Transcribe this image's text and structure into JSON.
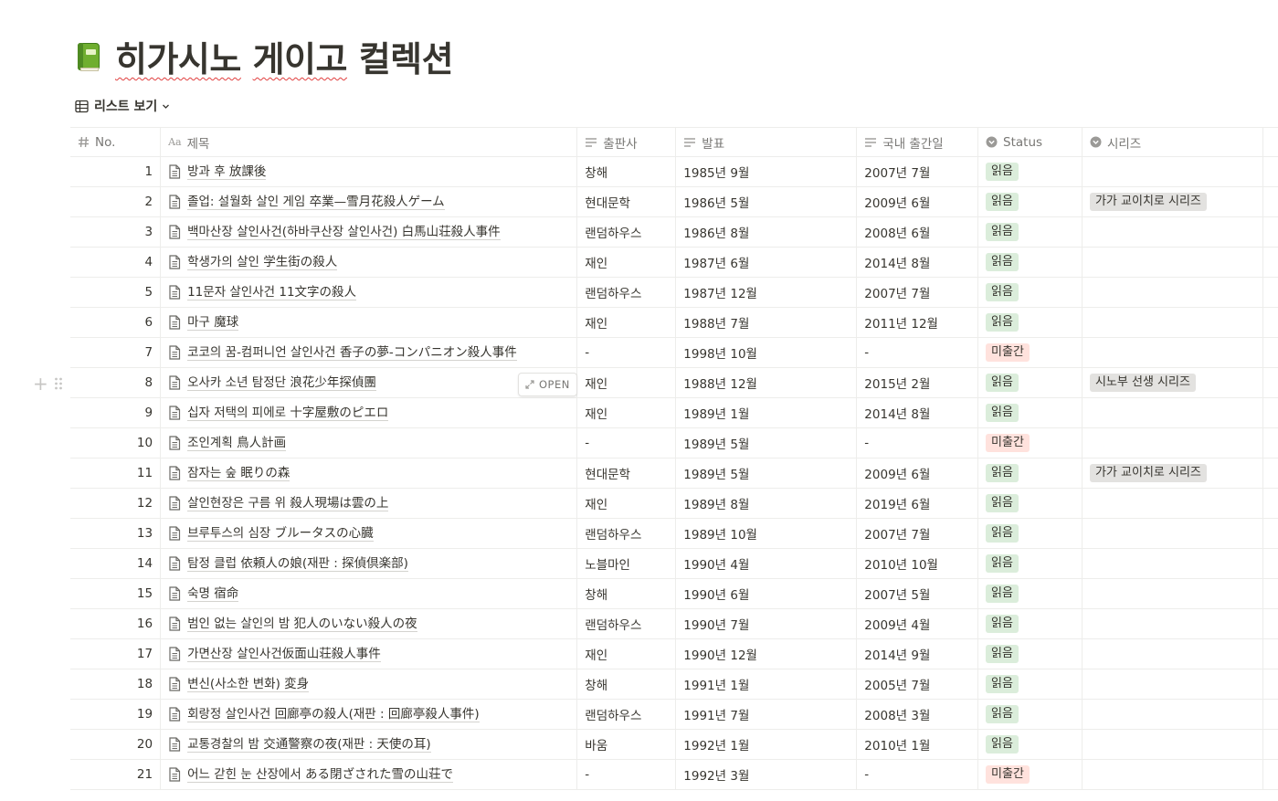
{
  "page": {
    "title_part1": "히가시노",
    "title_part2": "게이고",
    "title_part3": "컬렉션",
    "icon": "green-book-icon"
  },
  "view": {
    "label": "리스트 보기"
  },
  "columns": {
    "no": "No.",
    "title": "제목",
    "publisher": "출판사",
    "released": "발표",
    "kr_release": "국내 출간일",
    "status": "Status",
    "series": "시리즈"
  },
  "open_label": "OPEN",
  "rows": [
    {
      "no": "1",
      "title": "방과 후 放課後",
      "publisher": "창해",
      "released": "1985년 9월",
      "kr": "2007년 7월",
      "status": "읽음",
      "series": ""
    },
    {
      "no": "2",
      "title": "졸업: 설월화 살인 게임 卒業—雪月花殺人ゲーム",
      "publisher": "현대문학",
      "released": "1986년 5월",
      "kr": "2009년 6월",
      "status": "읽음",
      "series": "가가 교이치로 시리즈"
    },
    {
      "no": "3",
      "title": "백마산장 살인사건(하바쿠산장 살인사건) 白馬山荘殺人事件",
      "publisher": "랜덤하우스",
      "released": "1986년 8월",
      "kr": "2008년 6월",
      "status": "읽음",
      "series": ""
    },
    {
      "no": "4",
      "title": "학생가의 살인 学生街の殺人",
      "publisher": "재인",
      "released": "1987년 6월",
      "kr": "2014년 8월",
      "status": "읽음",
      "series": ""
    },
    {
      "no": "5",
      "title": "11문자 살인사건 11文字の殺人",
      "publisher": "랜덤하우스",
      "released": "1987년 12월",
      "kr": "2007년 7월",
      "status": "읽음",
      "series": ""
    },
    {
      "no": "6",
      "title": "마구 魔球",
      "publisher": "재인",
      "released": "1988년 7월",
      "kr": "2011년 12월",
      "status": "읽음",
      "series": ""
    },
    {
      "no": "7",
      "title": "코코의 꿈-컴퍼니언 살인사건 香子の夢-コンパニオン殺人事件",
      "publisher": "-",
      "released": "1998년 10월",
      "kr": "-",
      "status": "미출간",
      "series": ""
    },
    {
      "no": "8",
      "title": "오사카 소년 탐정단 浪花少年探偵團",
      "publisher": "재인",
      "released": "1988년 12월",
      "kr": "2015년 2월",
      "status": "읽음",
      "series": "시노부 선생 시리즈"
    },
    {
      "no": "9",
      "title": "십자 저택의 피에로 十字屋敷のピエロ",
      "publisher": "재인",
      "released": "1989년 1월",
      "kr": "2014년 8월",
      "status": "읽음",
      "series": ""
    },
    {
      "no": "10",
      "title": "조인계획 鳥人計画",
      "publisher": "-",
      "released": "1989년 5월",
      "kr": "-",
      "status": "미출간",
      "series": ""
    },
    {
      "no": "11",
      "title": "잠자는 숲 眠りの森",
      "publisher": "현대문학",
      "released": "1989년 5월",
      "kr": "2009년 6월",
      "status": "읽음",
      "series": "가가 교이치로 시리즈"
    },
    {
      "no": "12",
      "title": "살인현장은 구름 위 殺人現場は雲の上",
      "publisher": "재인",
      "released": "1989년 8월",
      "kr": "2019년 6월",
      "status": "읽음",
      "series": ""
    },
    {
      "no": "13",
      "title": "브루투스의 심장 ブルータスの心臓",
      "publisher": "랜덤하우스",
      "released": "1989년 10월",
      "kr": "2007년 7월",
      "status": "읽음",
      "series": ""
    },
    {
      "no": "14",
      "title": "탐정 클럽 依頼人の娘(재판 : 探偵倶楽部)",
      "publisher": "노블마인",
      "released": "1990년 4월",
      "kr": "2010년 10월",
      "status": "읽음",
      "series": ""
    },
    {
      "no": "15",
      "title": "숙명 宿命",
      "publisher": "창해",
      "released": "1990년 6월",
      "kr": "2007년 5월",
      "status": "읽음",
      "series": ""
    },
    {
      "no": "16",
      "title": "범인 없는 살인의 밤 犯人のいない殺人の夜",
      "publisher": "랜덤하우스",
      "released": "1990년 7월",
      "kr": "2009년 4월",
      "status": "읽음",
      "series": ""
    },
    {
      "no": "17",
      "title": "가면산장 살인사건仮面山荘殺人事件",
      "publisher": "재인",
      "released": "1990년 12월",
      "kr": "2014년 9월",
      "status": "읽음",
      "series": ""
    },
    {
      "no": "18",
      "title": "변신(사소한 변화) 変身",
      "publisher": "창해",
      "released": "1991년 1월",
      "kr": "2005년 7월",
      "status": "읽음",
      "series": ""
    },
    {
      "no": "19",
      "title": "회랑정 살인사건 回廊亭の殺人(재판 : 回廊亭殺人事件)",
      "publisher": "랜덤하우스",
      "released": "1991년 7월",
      "kr": "2008년 3월",
      "status": "읽음",
      "series": ""
    },
    {
      "no": "20",
      "title": "교통경찰의 밤 交通警察の夜(재판 : 天使の耳)",
      "publisher": "바움",
      "released": "1992년 1월",
      "kr": "2010년 1월",
      "status": "읽음",
      "series": ""
    },
    {
      "no": "21",
      "title": "어느 갇힌 눈 산장에서 ある閉ざされた雪の山荘で",
      "publisher": "-",
      "released": "1992년 3월",
      "kr": "-",
      "status": "미출간",
      "series": ""
    }
  ],
  "colors": {
    "read_tag": "#dbeddb",
    "unpublished_tag": "#ffe2dd",
    "series_tag": "#e3e2e0",
    "text": "#37352f",
    "muted": "#787774"
  }
}
